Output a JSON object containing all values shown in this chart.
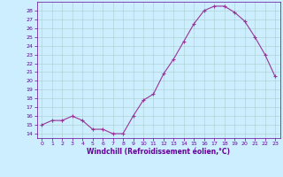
{
  "x": [
    0,
    1,
    2,
    3,
    4,
    5,
    6,
    7,
    8,
    9,
    10,
    11,
    12,
    13,
    14,
    15,
    16,
    17,
    18,
    19,
    20,
    21,
    22,
    23
  ],
  "y": [
    15.0,
    15.5,
    15.5,
    16.0,
    15.5,
    14.5,
    14.5,
    14.0,
    14.0,
    16.0,
    17.8,
    18.5,
    20.8,
    22.5,
    24.5,
    26.5,
    28.0,
    28.5,
    28.5,
    27.8,
    26.8,
    25.0,
    23.0,
    20.5
  ],
  "line_color": "#993399",
  "marker": "+",
  "markersize": 3.0,
  "linewidth": 0.8,
  "bg_color": "#cceeff",
  "grid_color": "#aacccc",
  "xlabel": "Windchill (Refroidissement éolien,°C)",
  "ylabel": "",
  "xlim": [
    -0.5,
    23.5
  ],
  "ylim": [
    13.5,
    29.0
  ],
  "yticks": [
    14,
    15,
    16,
    17,
    18,
    19,
    20,
    21,
    22,
    23,
    24,
    25,
    26,
    27,
    28
  ],
  "xticks": [
    0,
    1,
    2,
    3,
    4,
    5,
    6,
    7,
    8,
    9,
    10,
    11,
    12,
    13,
    14,
    15,
    16,
    17,
    18,
    19,
    20,
    21,
    22,
    23
  ],
  "tick_fontsize": 4.5,
  "xlabel_fontsize": 5.5,
  "axis_color": "#660099",
  "spine_color": "#660099"
}
